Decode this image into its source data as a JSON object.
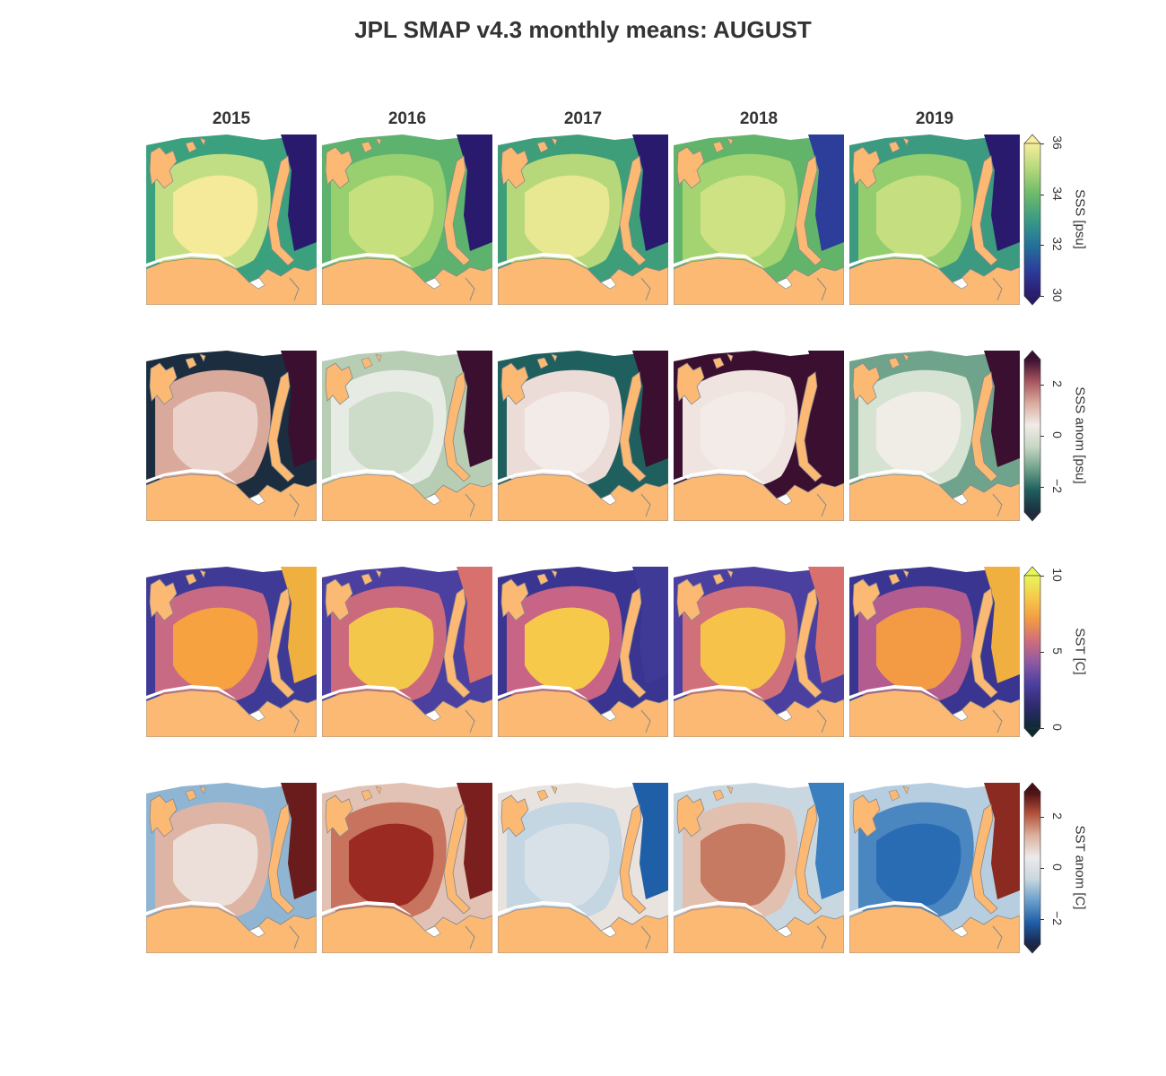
{
  "figure": {
    "title": "JPL SMAP v4.3 monthly means: AUGUST",
    "columns": [
      "2015",
      "2016",
      "2017",
      "2018",
      "2019"
    ]
  },
  "rows": [
    {
      "id": "sss",
      "colorbar_label": "SSS [psu]",
      "ticks": [
        "30",
        "32",
        "34",
        "36"
      ],
      "range": [
        30,
        36
      ],
      "colormap": [
        "#2a1a6e",
        "#2d3d9a",
        "#23729a",
        "#3b9a85",
        "#6cba6a",
        "#b4d87a",
        "#f6ee9c"
      ],
      "panel_colors": {
        "2015": {
          "inner": "#f5e99a",
          "mid": "#c2de84",
          "outer": "#3aa07e",
          "east": "#2a1a6e"
        },
        "2016": {
          "inner": "#c7e07e",
          "mid": "#98cf6f",
          "outer": "#5db36d",
          "east": "#2a1a6e"
        },
        "2017": {
          "inner": "#e8e893",
          "mid": "#b6d87a",
          "outer": "#3e9e7a",
          "east": "#2a1a6e"
        },
        "2018": {
          "inner": "#cfe283",
          "mid": "#a4d472",
          "outer": "#62b46b",
          "east": "#2d3d9a"
        },
        "2019": {
          "inner": "#c5df80",
          "mid": "#94cd6e",
          "outer": "#3b9a80",
          "east": "#2a1a6e"
        }
      }
    },
    {
      "id": "sss_anom",
      "colorbar_label": "SSS anom [psu]",
      "ticks": [
        "−2",
        "0",
        "2"
      ],
      "range": [
        -3,
        3
      ],
      "colormap": [
        "#1b2d3e",
        "#1f5f5e",
        "#6fa38c",
        "#c8d7c4",
        "#f1ebe7",
        "#d9ab9d",
        "#a6555f",
        "#3b0f30"
      ],
      "panel_colors": {
        "2015": {
          "inner": "#ebd3cc",
          "mid": "#d9a99b",
          "outer": "#1b2d3e",
          "east": "#3b0f30"
        },
        "2016": {
          "inner": "#ccdcc8",
          "mid": "#e6ece4",
          "outer": "#b7cdb4",
          "east": "#3b0f30"
        },
        "2017": {
          "inner": "#f2ebe8",
          "mid": "#ecdcd8",
          "outer": "#1f5f5e",
          "east": "#3b0f30"
        },
        "2018": {
          "inner": "#f3ebe8",
          "mid": "#f0e4e0",
          "outer": "#3b0f30",
          "east": "#3b0f30"
        },
        "2019": {
          "inner": "#f0ece6",
          "mid": "#d6e2d2",
          "outer": "#6fa38c",
          "east": "#3b0f30"
        }
      }
    },
    {
      "id": "sst",
      "colorbar_label": "SST [C]",
      "ticks": [
        "0",
        "5",
        "10"
      ],
      "range": [
        0,
        10
      ],
      "colormap": [
        "#0d2a33",
        "#2e2a6e",
        "#4b3fa0",
        "#8c5aa3",
        "#cf6d7c",
        "#f29b44",
        "#f6c94a",
        "#e8f65c"
      ],
      "panel_colors": {
        "2015": {
          "inner": "#f6a240",
          "mid": "#c96a85",
          "outer": "#3f3a96",
          "east": "#f0b040"
        },
        "2016": {
          "inner": "#f3c84a",
          "mid": "#cc6a7d",
          "outer": "#4b3fa0",
          "east": "#d8706e"
        },
        "2017": {
          "inner": "#f6c94a",
          "mid": "#c86485",
          "outer": "#3a3590",
          "east": "#3f3a96"
        },
        "2018": {
          "inner": "#f6c24a",
          "mid": "#d0707a",
          "outer": "#4b3fa0",
          "east": "#d8706e"
        },
        "2019": {
          "inner": "#f29b44",
          "mid": "#b25c8f",
          "outer": "#3a3590",
          "east": "#f0b040"
        }
      }
    },
    {
      "id": "sst_anom",
      "colorbar_label": "SST anom [C]",
      "ticks": [
        "−2",
        "0",
        "2"
      ],
      "range": [
        -3,
        3
      ],
      "colormap": [
        "#1a2447",
        "#1f5fa8",
        "#6a9fcb",
        "#c9d7e0",
        "#ecebea",
        "#dcb09c",
        "#b2513a",
        "#4a0e12"
      ],
      "panel_colors": {
        "2015": {
          "inner": "#ecdfda",
          "mid": "#deb5a5",
          "outer": "#8fb5d3",
          "east": "#6a1c1c"
        },
        "2016": {
          "inner": "#9b2a22",
          "mid": "#c8735d",
          "outer": "#e2c2b4",
          "east": "#7a1e1e"
        },
        "2017": {
          "inner": "#d8e1e8",
          "mid": "#c4d6e2",
          "outer": "#e9e3e0",
          "east": "#1f5fa8"
        },
        "2018": {
          "inner": "#c77a62",
          "mid": "#e2c0b0",
          "outer": "#c9d7e0",
          "east": "#3a7fc0"
        },
        "2019": {
          "inner": "#2a6cb4",
          "mid": "#4a86c0",
          "outer": "#b7cde0",
          "east": "#8b2a20"
        }
      }
    }
  ],
  "land_color": "#fbb974",
  "coast_color": "#888888"
}
